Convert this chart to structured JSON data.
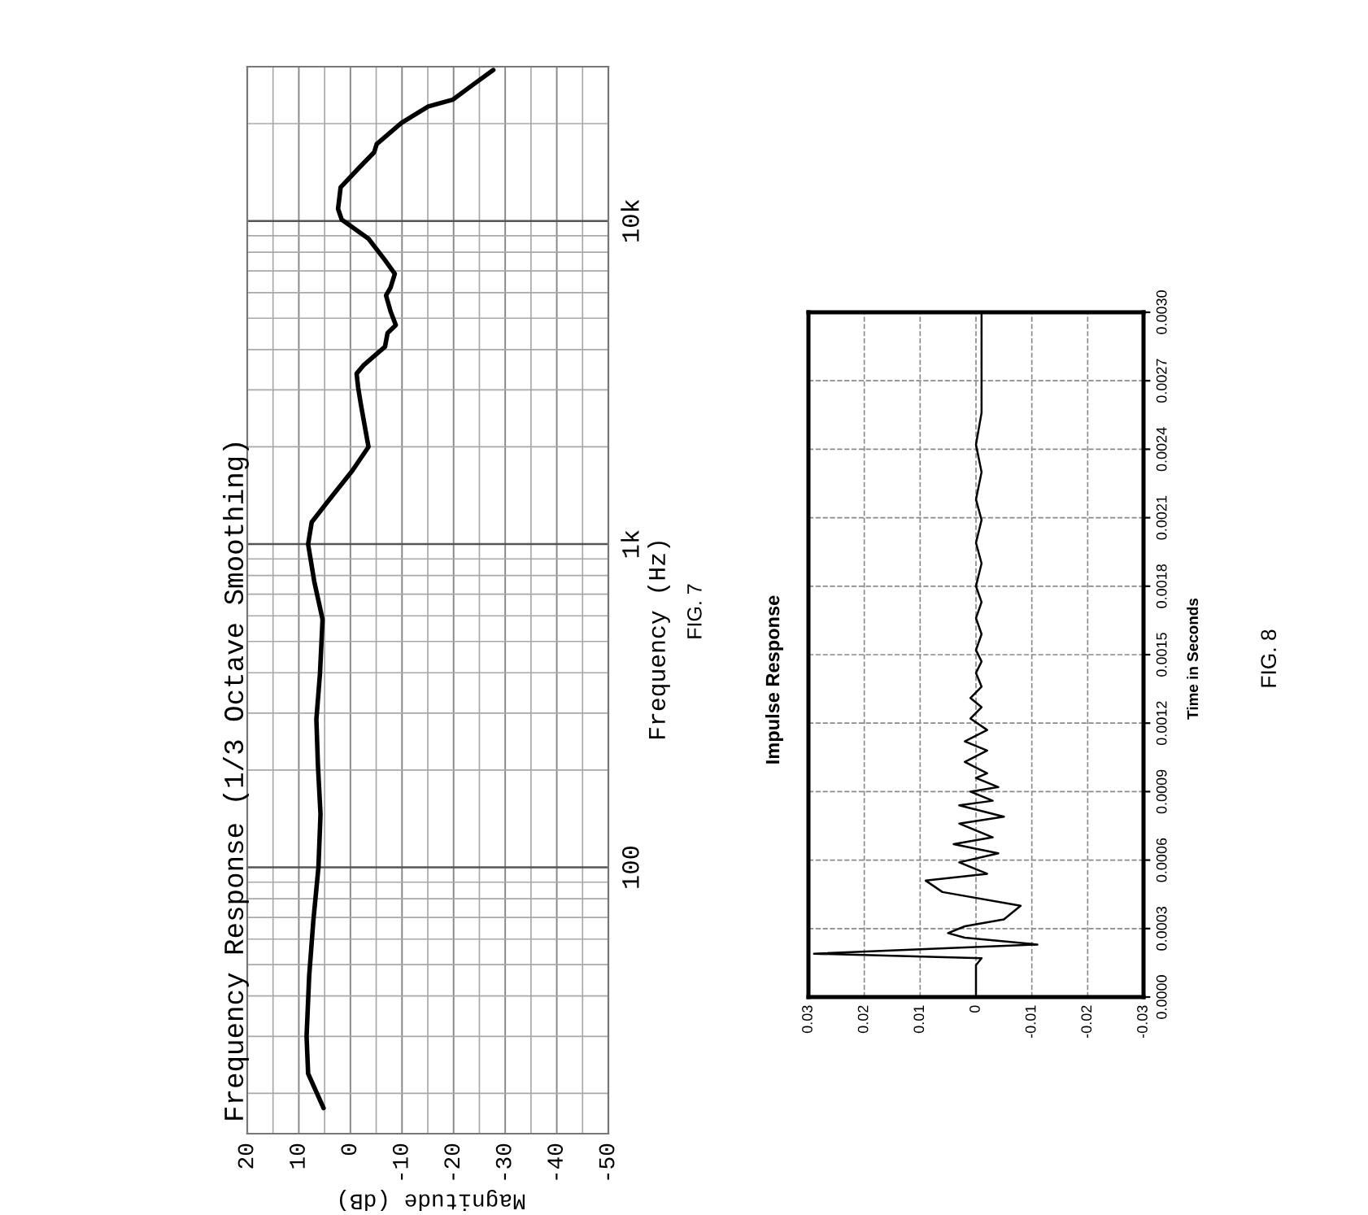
{
  "chart_data": [
    {
      "type": "line",
      "title": "Frequency Response (1/3 Octave Smoothing)",
      "xlabel": "Magnitude (dB)",
      "ylabel": "Frequency (Hz)",
      "annotations": [
        "FIG. 7"
      ],
      "x": [
        5.2,
        8.2,
        8.5,
        8.0,
        7.2,
        6.2,
        5.8,
        6.3,
        6.6,
        5.9,
        5.4,
        7.0,
        8.2,
        7.5,
        4.3,
        -0.4,
        -3.5,
        -2.0,
        -1.5,
        -1.2,
        -2.5,
        -6.7,
        -7.2,
        -8.8,
        -7.8,
        -6.9,
        -7.8,
        -8.6,
        -6.7,
        -3.5,
        1.7,
        2.4,
        1.9,
        -1.5,
        -4.6,
        -5.1,
        -9.9,
        -15.1,
        -19.8,
        -23.5,
        -27.7
      ],
      "series": [
        {
          "color": "#000000",
          "values": [
            18,
            23,
            30,
            46,
            68,
            100,
            146,
            207,
            287,
            398,
            585,
            765,
            1000,
            1170,
            1360,
            1690,
            2000,
            2720,
            3050,
            3370,
            3570,
            4080,
            4500,
            4760,
            5240,
            5880,
            6230,
            6860,
            7560,
            8810,
            10100,
            10900,
            12700,
            14500,
            16300,
            17300,
            20100,
            22600,
            23700,
            26200,
            29300
          ]
        }
      ],
      "log": "y",
      "xlim": [
        20,
        -50
      ],
      "xticks": [
        20,
        {
          "value": 15,
          "label": null
        },
        10,
        {
          "value": 5,
          "label": null
        },
        0,
        {
          "value": -5,
          "label": null
        },
        -10,
        {
          "value": -15,
          "label": null
        },
        -20,
        {
          "value": -25,
          "label": null
        },
        -30,
        {
          "value": -35,
          "label": null
        },
        -40,
        {
          "value": -45,
          "label": null
        },
        -50
      ],
      "ylim": [
        15,
        30000
      ],
      "yticks": [
        {
          "value": 20,
          "label": null
        },
        {
          "value": 30,
          "label": null
        },
        {
          "value": 40,
          "label": null
        },
        {
          "value": 50,
          "label": null
        },
        {
          "value": 60,
          "label": null
        },
        {
          "value": 70,
          "label": null
        },
        {
          "value": 80,
          "label": null
        },
        {
          "value": 90,
          "label": null
        },
        100,
        {
          "value": 200,
          "label": null
        },
        {
          "value": 300,
          "label": null
        },
        {
          "value": 400,
          "label": null
        },
        {
          "value": 500,
          "label": null
        },
        {
          "value": 600,
          "label": null
        },
        {
          "value": 700,
          "label": null
        },
        {
          "value": 800,
          "label": null
        },
        {
          "value": 900,
          "label": null
        },
        {
          "value": 1000,
          "label": "1k"
        },
        {
          "value": 2000,
          "label": null
        },
        {
          "value": 3000,
          "label": null
        },
        {
          "value": 4000,
          "label": null
        },
        {
          "value": 5000,
          "label": null
        },
        {
          "value": 6000,
          "label": null
        },
        {
          "value": 7000,
          "label": null
        },
        {
          "value": 8000,
          "label": null
        },
        {
          "value": 9000,
          "label": null
        },
        {
          "value": 10000,
          "label": "10k"
        },
        {
          "value": 20000,
          "label": null
        }
      ],
      "grid": true
    },
    {
      "type": "line",
      "title": "Impulse Response",
      "ylabel": "Time in Seconds",
      "annotations": [
        "FIG. 8"
      ],
      "x": [
        0.0,
        0.0,
        -0.001,
        0.029,
        -0.011,
        0.002,
        0.005,
        0.002,
        -0.005,
        -0.008,
        0.006,
        0.009,
        -0.002,
        0.003,
        -0.004,
        0.004,
        -0.003,
        0.003,
        -0.005,
        0.003,
        -0.003,
        0.001,
        -0.004,
        0.0,
        -0.002,
        0.002,
        -0.002,
        0.002,
        -0.002,
        0.001,
        -0.001,
        0.001,
        -0.001,
        0.0,
        -0.001,
        0.0,
        -0.001,
        0.0,
        -0.001,
        0.0,
        -0.001,
        0.0,
        -0.001,
        0.0,
        -0.001,
        0.0,
        -0.001,
        -0.001,
        -0.001,
        -0.001
      ],
      "series": [
        {
          "color": "#000000",
          "values": [
            0.0,
            0.00014,
            0.00017,
            0.00019,
            0.00023,
            0.00026,
            0.00028,
            0.00031,
            0.00034,
            0.0004,
            0.00046,
            0.00051,
            0.00054,
            0.00059,
            0.00063,
            0.00067,
            0.0007,
            0.00076,
            0.00079,
            0.00084,
            0.00086,
            0.0009,
            0.00092,
            0.00096,
            0.00098,
            0.00103,
            0.00108,
            0.00112,
            0.00117,
            0.00122,
            0.00127,
            0.00131,
            0.00136,
            0.00142,
            0.00147,
            0.00152,
            0.00159,
            0.00166,
            0.00173,
            0.0018,
            0.0019,
            0.00199,
            0.00209,
            0.00218,
            0.0023,
            0.00242,
            0.00256,
            0.00273,
            0.00289,
            0.00299
          ]
        }
      ],
      "xlim": [
        0.03,
        -0.03
      ],
      "xticks": [
        0.03,
        0.02,
        0.01,
        0,
        -0.01,
        -0.02,
        -0.03
      ],
      "ylim": [
        0,
        0.003
      ],
      "yticks": [
        {
          "value": 0,
          "label": "0.0000"
        },
        0.0003,
        0.0006,
        0.0009,
        0.0012,
        0.0015,
        0.0018,
        0.0021,
        0.0024,
        0.0027,
        {
          "value": 0.003,
          "label": "0.0030"
        }
      ],
      "grid": true
    }
  ]
}
